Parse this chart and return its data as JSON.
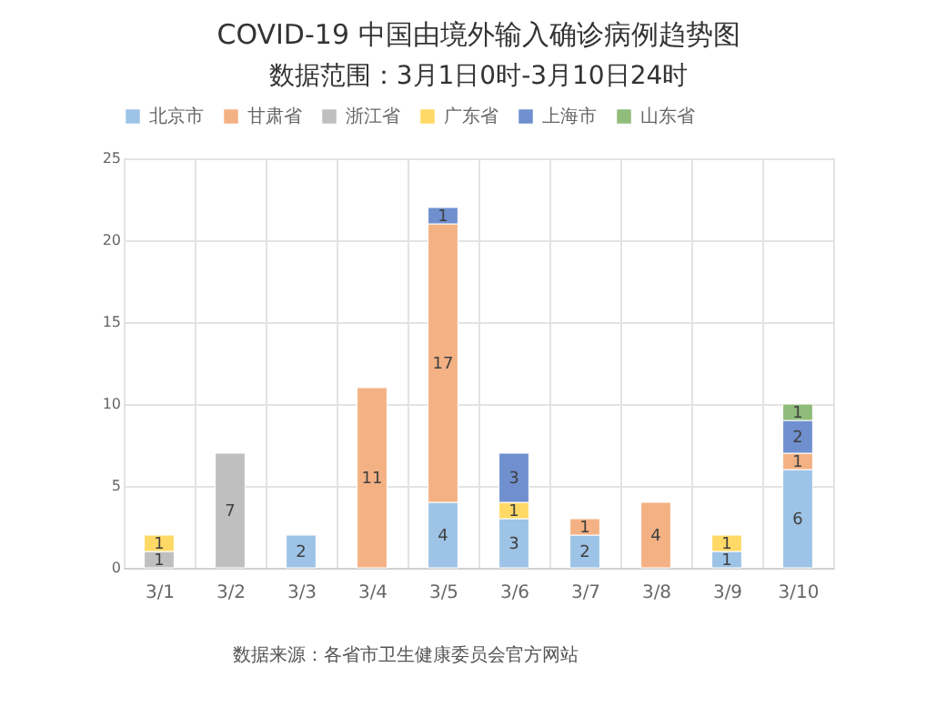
{
  "chart_data": {
    "type": "bar",
    "title": "COVID-19 中国由境外输入确诊病例趋势图",
    "subtitle": "数据范围：3月1日0时-3月10日24时",
    "categories": [
      "3/1",
      "3/2",
      "3/3",
      "3/4",
      "3/5",
      "3/6",
      "3/7",
      "3/8",
      "3/9",
      "3/10"
    ],
    "series": [
      {
        "name": "北京市",
        "color": "#9dc3e6",
        "values": [
          null,
          null,
          2,
          null,
          4,
          3,
          2,
          null,
          1,
          6
        ]
      },
      {
        "name": "甘肃省",
        "color": "#f4b183",
        "values": [
          null,
          null,
          null,
          11,
          17,
          null,
          1,
          4,
          null,
          1
        ]
      },
      {
        "name": "浙江省",
        "color": "#bfbfbf",
        "values": [
          1,
          7,
          null,
          null,
          null,
          null,
          null,
          null,
          null,
          null
        ]
      },
      {
        "name": "广东省",
        "color": "#ffd966",
        "values": [
          1,
          null,
          null,
          null,
          null,
          1,
          null,
          null,
          1,
          null
        ]
      },
      {
        "name": "上海市",
        "color": "#6f8fcf",
        "values": [
          null,
          null,
          null,
          null,
          1,
          3,
          null,
          null,
          null,
          2
        ]
      },
      {
        "name": "山东省",
        "color": "#8fbc7a",
        "values": [
          null,
          null,
          null,
          null,
          null,
          null,
          null,
          null,
          null,
          1
        ]
      }
    ],
    "stacked": true,
    "ylim": [
      0,
      25
    ],
    "yticks": [
      0,
      5,
      10,
      15,
      20,
      25
    ],
    "grid": true,
    "legend": "top",
    "data_labels": true,
    "annotations": [
      "数据来源：各省市卫生健康委员会官方网站"
    ]
  }
}
